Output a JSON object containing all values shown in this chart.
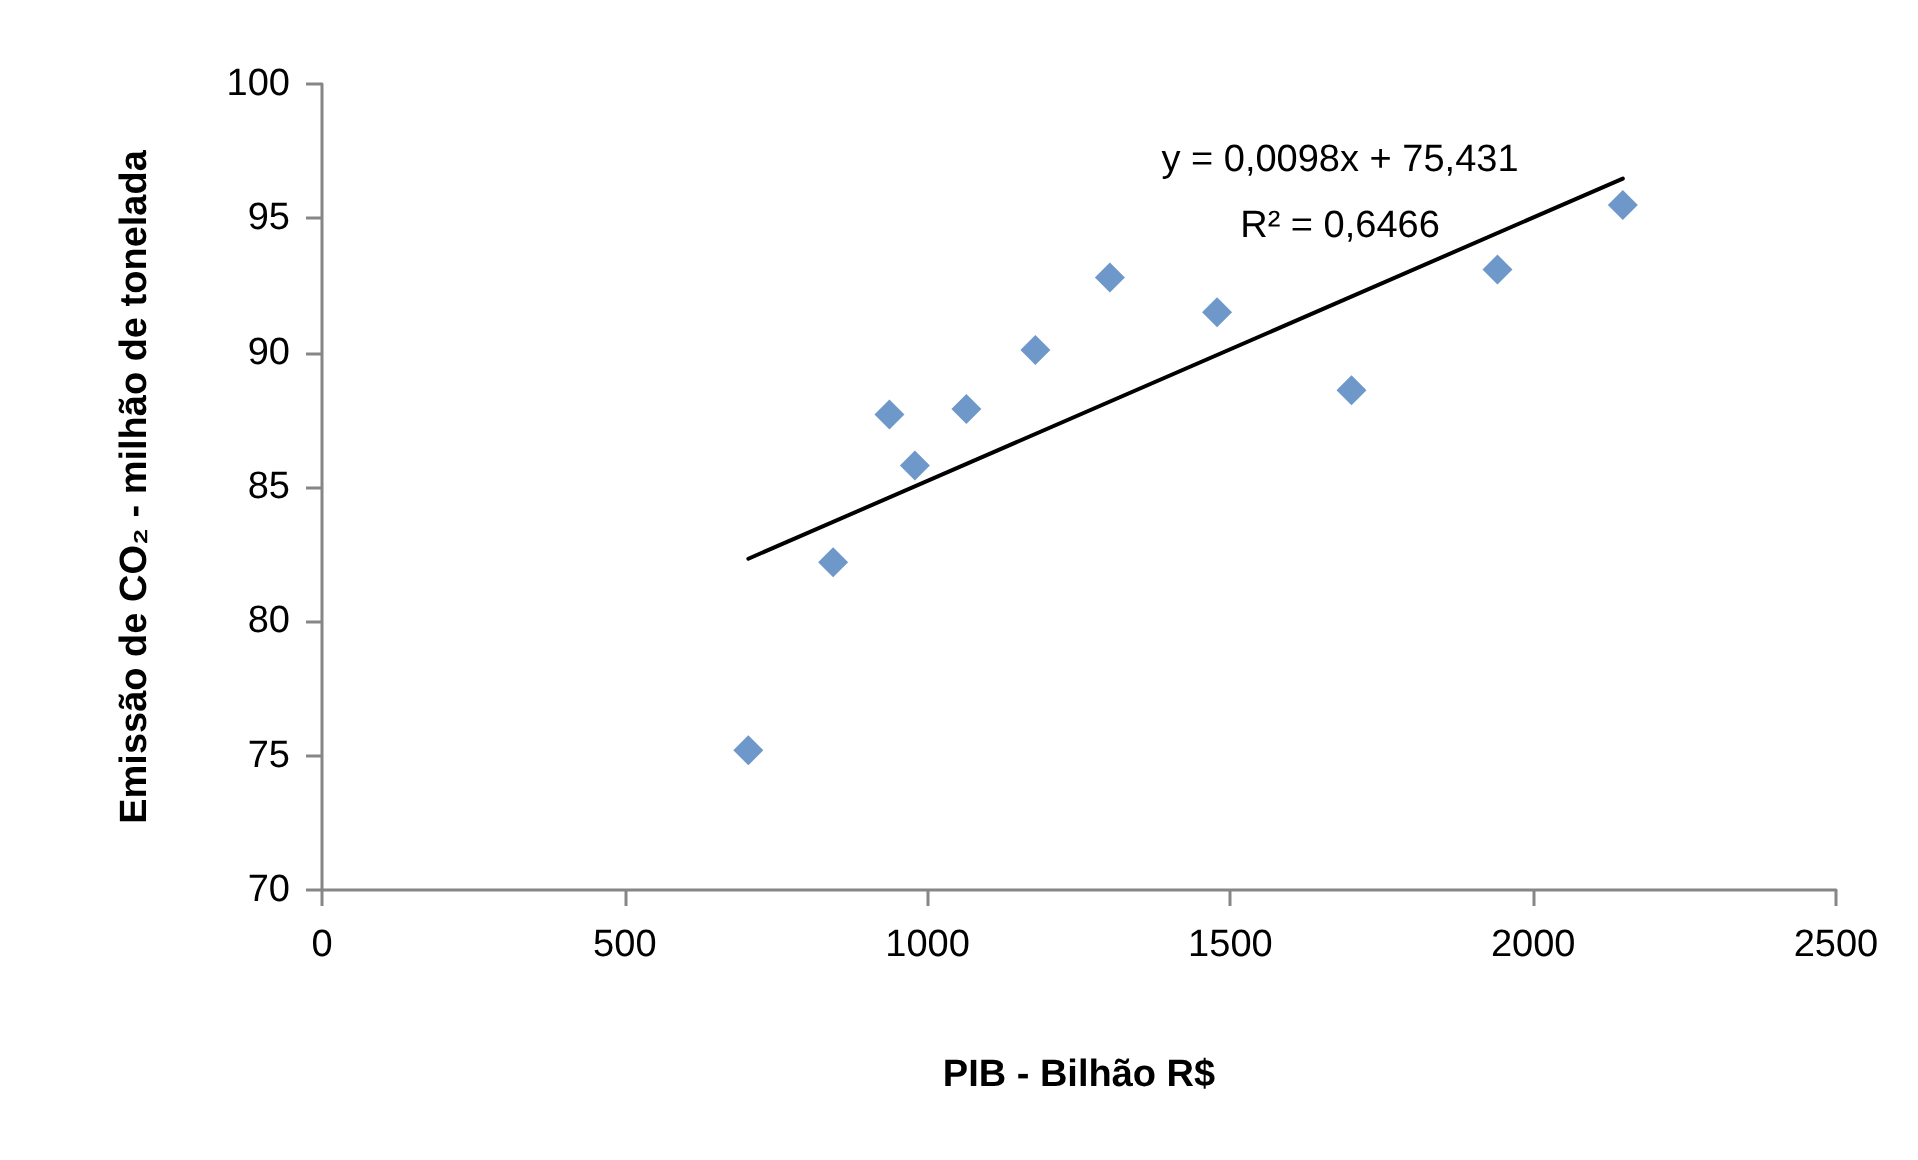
{
  "chart_data": {
    "type": "scatter",
    "xlabel": "PIB - Bilhão R$",
    "ylabel": "Emissão de CO₂ - milhão de tonelada",
    "x": [
      704,
      844,
      937,
      979,
      1064,
      1178,
      1301,
      1478,
      1700,
      1941,
      2148
    ],
    "series": [
      {
        "color": "#4a7ebb",
        "values": [
          75.2,
          82.2,
          87.7,
          85.8,
          87.9,
          90.1,
          92.8,
          91.5,
          88.6,
          93.1,
          95.5
        ],
        "marker": "diamond"
      },
      {
        "type": "line",
        "color": "#000000",
        "x": [
          704,
          2148
        ],
        "values": [
          82.33,
          96.48
        ],
        "marker": "none",
        "line_style": "solid"
      }
    ],
    "annotations": [
      "y = 0,0098x + 75,431",
      "R² = 0,6466"
    ],
    "xlim": [
      0,
      2500
    ],
    "xticks": [
      0,
      500,
      1000,
      1500,
      2000,
      2500
    ],
    "ylim": [
      70,
      100
    ],
    "yticks": [
      70,
      75,
      80,
      85,
      90,
      95,
      100
    ]
  }
}
